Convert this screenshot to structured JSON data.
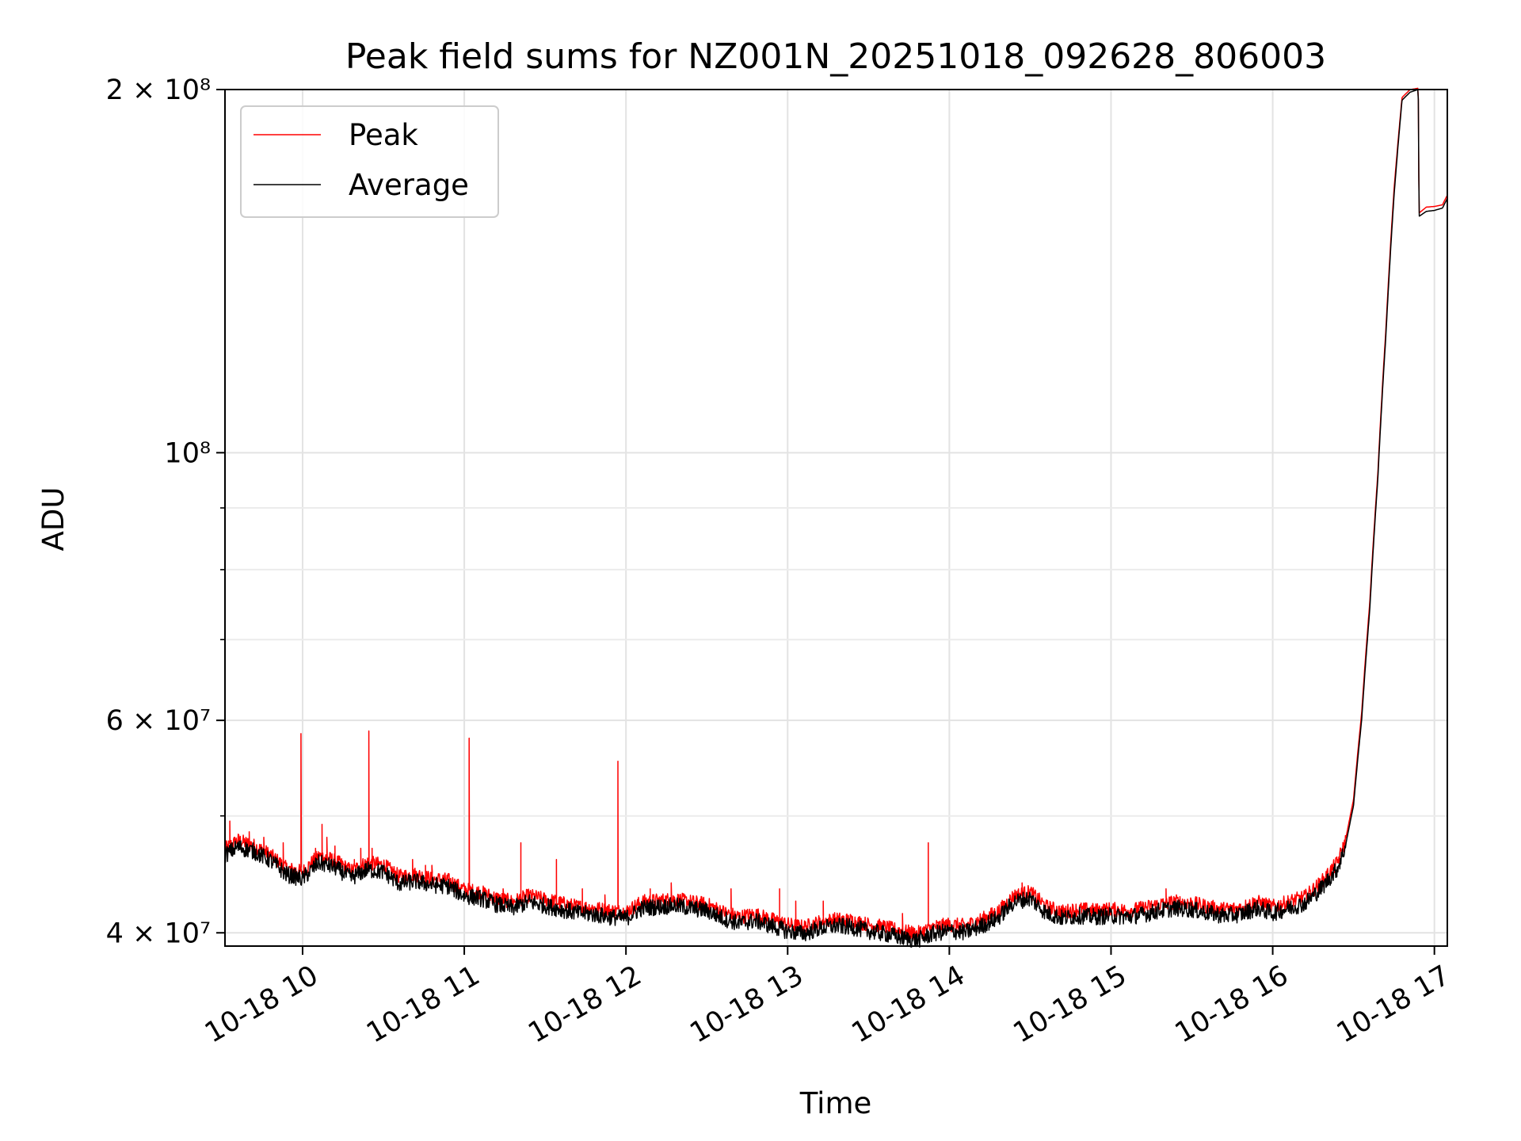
{
  "chart_data": {
    "type": "line",
    "title": "Peak field sums for NZ001N_20251018_092628_806003",
    "xlabel": "Time",
    "ylabel": "ADU",
    "yscale": "log",
    "ylim": [
      39000000,
      200000000
    ],
    "xlim_hours": [
      9.52,
      17.08
    ],
    "grid": true,
    "legend_position": "top-left",
    "x_ticks": [
      {
        "hour": 10,
        "label": "10-18 10"
      },
      {
        "hour": 11,
        "label": "10-18 11"
      },
      {
        "hour": 12,
        "label": "10-18 12"
      },
      {
        "hour": 13,
        "label": "10-18 13"
      },
      {
        "hour": 14,
        "label": "10-18 14"
      },
      {
        "hour": 15,
        "label": "10-18 15"
      },
      {
        "hour": 16,
        "label": "10-18 16"
      },
      {
        "hour": 17,
        "label": "10-18 17"
      }
    ],
    "y_major_ticks": [
      {
        "value": 40000000,
        "label": "4 × 10⁷"
      },
      {
        "value": 60000000,
        "label": "6 × 10⁷"
      },
      {
        "value": 100000000,
        "label": "10⁸"
      },
      {
        "value": 200000000,
        "label": "2 × 10⁸"
      }
    ],
    "y_minor_ticks": [
      50000000,
      70000000,
      80000000,
      90000000
    ],
    "series": [
      {
        "name": "Average",
        "color": "#000000",
        "points": [
          [
            9.52,
            46.5
          ],
          [
            9.6,
            47.2
          ],
          [
            9.7,
            46.8
          ],
          [
            9.8,
            46.0
          ],
          [
            9.9,
            44.8
          ],
          [
            10.0,
            44.4
          ],
          [
            10.1,
            45.8
          ],
          [
            10.2,
            45.4
          ],
          [
            10.3,
            44.5
          ],
          [
            10.4,
            45.2
          ],
          [
            10.5,
            45.0
          ],
          [
            10.6,
            44.0
          ],
          [
            10.7,
            44.2
          ],
          [
            10.8,
            43.9
          ],
          [
            10.9,
            43.8
          ],
          [
            11.0,
            43.0
          ],
          [
            11.1,
            42.8
          ],
          [
            11.2,
            42.3
          ],
          [
            11.3,
            42.0
          ],
          [
            11.4,
            42.5
          ],
          [
            11.5,
            42.2
          ],
          [
            11.6,
            41.9
          ],
          [
            11.7,
            41.6
          ],
          [
            11.8,
            41.5
          ],
          [
            11.9,
            41.3
          ],
          [
            12.0,
            41.2
          ],
          [
            12.1,
            42.0
          ],
          [
            12.2,
            42.1
          ],
          [
            12.3,
            42.2
          ],
          [
            12.4,
            42.0
          ],
          [
            12.5,
            41.8
          ],
          [
            12.6,
            41.2
          ],
          [
            12.7,
            40.8
          ],
          [
            12.8,
            41.0
          ],
          [
            12.9,
            40.6
          ],
          [
            13.0,
            40.2
          ],
          [
            13.1,
            40.0
          ],
          [
            13.2,
            40.4
          ],
          [
            13.3,
            40.6
          ],
          [
            13.4,
            40.5
          ],
          [
            13.5,
            40.2
          ],
          [
            13.6,
            40.0
          ],
          [
            13.7,
            39.7
          ],
          [
            13.8,
            39.5
          ],
          [
            13.9,
            40.0
          ],
          [
            14.0,
            40.2
          ],
          [
            14.1,
            40.1
          ],
          [
            14.2,
            40.6
          ],
          [
            14.3,
            41.2
          ],
          [
            14.4,
            42.5
          ],
          [
            14.5,
            42.8
          ],
          [
            14.6,
            41.6
          ],
          [
            14.7,
            41.2
          ],
          [
            14.8,
            41.4
          ],
          [
            14.9,
            41.3
          ],
          [
            15.0,
            41.4
          ],
          [
            15.1,
            41.3
          ],
          [
            15.2,
            41.5
          ],
          [
            15.3,
            41.8
          ],
          [
            15.4,
            42.0
          ],
          [
            15.5,
            41.9
          ],
          [
            15.6,
            41.6
          ],
          [
            15.7,
            41.4
          ],
          [
            15.8,
            41.5
          ],
          [
            15.9,
            42.0
          ],
          [
            16.0,
            41.6
          ],
          [
            16.1,
            42.0
          ],
          [
            16.2,
            42.4
          ],
          [
            16.3,
            43.6
          ],
          [
            16.4,
            45.3
          ],
          [
            16.45,
            47.2
          ],
          [
            16.5,
            51.0
          ],
          [
            16.55,
            60.0
          ],
          [
            16.6,
            74.0
          ],
          [
            16.65,
            95.0
          ],
          [
            16.7,
            125.0
          ],
          [
            16.75,
            163.0
          ],
          [
            16.8,
            196.0
          ],
          [
            16.85,
            199.0
          ],
          [
            16.9,
            200.0
          ],
          [
            16.905,
            157.0
          ],
          [
            16.95,
            158.5
          ],
          [
            17.0,
            158.8
          ],
          [
            17.05,
            159.5
          ],
          [
            17.08,
            162.5
          ]
        ]
      },
      {
        "name": "Peak",
        "color": "#ff0000",
        "points": [
          [
            9.52,
            47.0
          ],
          [
            9.6,
            47.8
          ],
          [
            9.7,
            47.3
          ],
          [
            9.8,
            46.5
          ],
          [
            9.9,
            45.3
          ],
          [
            10.0,
            45.0
          ],
          [
            10.1,
            46.4
          ],
          [
            10.2,
            46.0
          ],
          [
            10.3,
            45.1
          ],
          [
            10.4,
            45.8
          ],
          [
            10.5,
            45.6
          ],
          [
            10.6,
            44.6
          ],
          [
            10.7,
            44.8
          ],
          [
            10.8,
            44.4
          ],
          [
            10.9,
            44.3
          ],
          [
            11.0,
            43.5
          ],
          [
            11.1,
            43.3
          ],
          [
            11.2,
            42.8
          ],
          [
            11.3,
            42.5
          ],
          [
            11.4,
            43.0
          ],
          [
            11.5,
            42.7
          ],
          [
            11.6,
            42.4
          ],
          [
            11.7,
            42.1
          ],
          [
            11.8,
            42.0
          ],
          [
            11.9,
            41.8
          ],
          [
            12.0,
            41.7
          ],
          [
            12.1,
            42.5
          ],
          [
            12.2,
            42.6
          ],
          [
            12.3,
            42.7
          ],
          [
            12.4,
            42.5
          ],
          [
            12.5,
            42.3
          ],
          [
            12.6,
            41.7
          ],
          [
            12.7,
            41.3
          ],
          [
            12.8,
            41.5
          ],
          [
            12.9,
            41.1
          ],
          [
            13.0,
            40.7
          ],
          [
            13.1,
            40.5
          ],
          [
            13.2,
            40.9
          ],
          [
            13.3,
            41.1
          ],
          [
            13.4,
            41.0
          ],
          [
            13.5,
            40.7
          ],
          [
            13.6,
            40.5
          ],
          [
            13.7,
            40.2
          ],
          [
            13.8,
            40.0
          ],
          [
            13.9,
            40.5
          ],
          [
            14.0,
            40.7
          ],
          [
            14.1,
            40.6
          ],
          [
            14.2,
            41.1
          ],
          [
            14.3,
            41.7
          ],
          [
            14.4,
            43.0
          ],
          [
            14.5,
            43.3
          ],
          [
            14.6,
            42.1
          ],
          [
            14.7,
            41.7
          ],
          [
            14.8,
            41.9
          ],
          [
            14.9,
            41.8
          ],
          [
            15.0,
            41.9
          ],
          [
            15.1,
            41.8
          ],
          [
            15.2,
            42.0
          ],
          [
            15.3,
            42.3
          ],
          [
            15.4,
            42.5
          ],
          [
            15.5,
            42.4
          ],
          [
            15.6,
            42.1
          ],
          [
            15.7,
            41.9
          ],
          [
            15.8,
            42.0
          ],
          [
            15.9,
            42.5
          ],
          [
            16.0,
            42.1
          ],
          [
            16.1,
            42.5
          ],
          [
            16.2,
            42.9
          ],
          [
            16.3,
            44.1
          ],
          [
            16.4,
            45.8
          ],
          [
            16.45,
            47.7
          ],
          [
            16.5,
            51.6
          ],
          [
            16.55,
            60.8
          ],
          [
            16.6,
            75.0
          ],
          [
            16.65,
            96.0
          ],
          [
            16.7,
            126.5
          ],
          [
            16.75,
            165.0
          ],
          [
            16.8,
            197.0
          ],
          [
            16.85,
            200.0
          ],
          [
            16.9,
            200.5
          ],
          [
            16.905,
            158.0
          ],
          [
            16.95,
            159.8
          ],
          [
            17.0,
            160.0
          ],
          [
            17.05,
            160.5
          ],
          [
            17.08,
            163.5
          ]
        ],
        "spikes": [
          [
            9.52,
            51.0
          ],
          [
            9.55,
            49.5
          ],
          [
            9.67,
            48.5
          ],
          [
            9.76,
            48.0
          ],
          [
            9.88,
            47.5
          ],
          [
            9.99,
            58.5
          ],
          [
            10.08,
            47.0
          ],
          [
            10.12,
            49.2
          ],
          [
            10.15,
            48.0
          ],
          [
            10.2,
            47.2
          ],
          [
            10.32,
            46.0
          ],
          [
            10.36,
            47.0
          ],
          [
            10.41,
            58.8
          ],
          [
            10.43,
            47.0
          ],
          [
            10.68,
            46.0
          ],
          [
            10.76,
            45.5
          ],
          [
            10.8,
            45.5
          ],
          [
            11.03,
            58.0
          ],
          [
            11.24,
            43.5
          ],
          [
            11.35,
            47.5
          ],
          [
            11.57,
            46.0
          ],
          [
            11.73,
            43.5
          ],
          [
            11.87,
            43.0
          ],
          [
            11.95,
            55.5
          ],
          [
            12.15,
            43.5
          ],
          [
            12.28,
            44.0
          ],
          [
            12.65,
            43.5
          ],
          [
            12.95,
            43.5
          ],
          [
            13.05,
            42.5
          ],
          [
            13.22,
            42.5
          ],
          [
            13.71,
            41.5
          ],
          [
            13.87,
            47.5
          ],
          [
            14.45,
            44.0
          ],
          [
            15.34,
            43.5
          ]
        ]
      }
    ]
  }
}
